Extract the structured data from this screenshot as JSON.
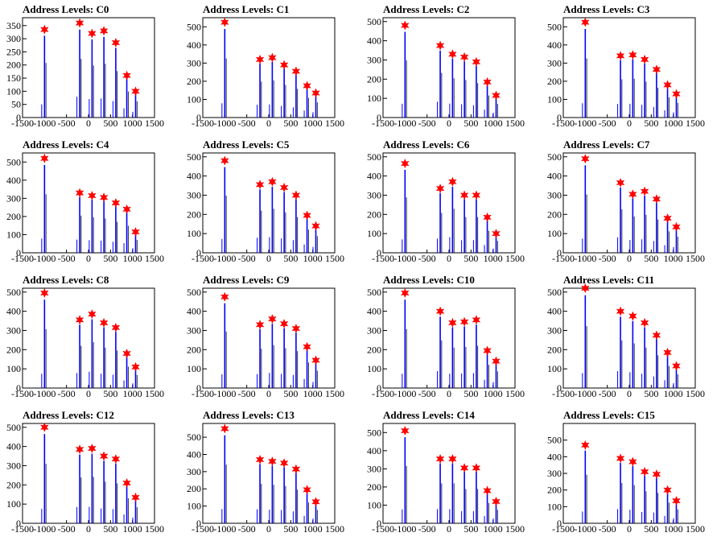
{
  "figure": {
    "layout": "4x4 grid of histograms",
    "colors": {
      "histogram": "#0000ff",
      "fill_line": "#000000",
      "peak_marker": "#ff0000"
    }
  },
  "chart_data": [
    {
      "type": "bar",
      "title": "Address Levels: C0",
      "xlim": [
        -1500,
        1500
      ],
      "ylim": [
        0,
        380
      ],
      "xticks": [
        -1500,
        -1000,
        -500,
        0,
        500,
        1000,
        1500
      ],
      "yticks": [
        0,
        50,
        100,
        150,
        200,
        250,
        300,
        350
      ],
      "peaks": [
        {
          "x": -1000,
          "y": 335
        },
        {
          "x": -200,
          "y": 360
        },
        {
          "x": 80,
          "y": 320
        },
        {
          "x": 350,
          "y": 330
        },
        {
          "x": 620,
          "y": 285
        },
        {
          "x": 870,
          "y": 160
        },
        {
          "x": 1070,
          "y": 100
        }
      ]
    },
    {
      "type": "bar",
      "title": "Address Levels: C1",
      "xlim": [
        -1500,
        1500
      ],
      "ylim": [
        0,
        550
      ],
      "xticks": [
        -1500,
        -1000,
        -500,
        0,
        500,
        1000,
        1500
      ],
      "yticks": [
        0,
        100,
        200,
        300,
        400,
        500
      ],
      "peaks": [
        {
          "x": -1000,
          "y": 525
        },
        {
          "x": -200,
          "y": 320
        },
        {
          "x": 80,
          "y": 330
        },
        {
          "x": 350,
          "y": 290
        },
        {
          "x": 620,
          "y": 255
        },
        {
          "x": 870,
          "y": 175
        },
        {
          "x": 1070,
          "y": 135
        }
      ]
    },
    {
      "type": "bar",
      "title": "Address Levels: C2",
      "xlim": [
        -1500,
        1500
      ],
      "ylim": [
        0,
        520
      ],
      "xticks": [
        -1500,
        -1000,
        -500,
        0,
        500,
        1000,
        1500
      ],
      "yticks": [
        0,
        100,
        200,
        300,
        400,
        500
      ],
      "peaks": [
        {
          "x": -1000,
          "y": 480
        },
        {
          "x": -200,
          "y": 375
        },
        {
          "x": 80,
          "y": 330
        },
        {
          "x": 350,
          "y": 315
        },
        {
          "x": 620,
          "y": 290
        },
        {
          "x": 870,
          "y": 185
        },
        {
          "x": 1070,
          "y": 115
        }
      ]
    },
    {
      "type": "bar",
      "title": "Address Levels: C3",
      "xlim": [
        -1500,
        1500
      ],
      "ylim": [
        0,
        550
      ],
      "xticks": [
        -1500,
        -1000,
        -500,
        0,
        500,
        1000,
        1500
      ],
      "yticks": [
        0,
        100,
        200,
        300,
        400,
        500
      ],
      "peaks": [
        {
          "x": -1000,
          "y": 525
        },
        {
          "x": -200,
          "y": 340
        },
        {
          "x": 80,
          "y": 345
        },
        {
          "x": 350,
          "y": 320
        },
        {
          "x": 620,
          "y": 265
        },
        {
          "x": 870,
          "y": 180
        },
        {
          "x": 1070,
          "y": 130
        }
      ]
    },
    {
      "type": "bar",
      "title": "Address Levels: C4",
      "xlim": [
        -1500,
        1500
      ],
      "ylim": [
        0,
        550
      ],
      "xticks": [
        -1500,
        -1000,
        -500,
        0,
        500,
        1000,
        1500
      ],
      "yticks": [
        0,
        100,
        200,
        300,
        400,
        500
      ],
      "peaks": [
        {
          "x": -1000,
          "y": 520
        },
        {
          "x": -200,
          "y": 330
        },
        {
          "x": 80,
          "y": 315
        },
        {
          "x": 350,
          "y": 305
        },
        {
          "x": 620,
          "y": 275
        },
        {
          "x": 870,
          "y": 240
        },
        {
          "x": 1070,
          "y": 115
        }
      ]
    },
    {
      "type": "bar",
      "title": "Address Levels: C5",
      "xlim": [
        -1500,
        1500
      ],
      "ylim": [
        0,
        520
      ],
      "xticks": [
        -1500,
        -1000,
        -500,
        0,
        500,
        1000,
        1500
      ],
      "yticks": [
        0,
        100,
        200,
        300,
        400,
        500
      ],
      "peaks": [
        {
          "x": -1000,
          "y": 480
        },
        {
          "x": -200,
          "y": 355
        },
        {
          "x": 80,
          "y": 370
        },
        {
          "x": 350,
          "y": 340
        },
        {
          "x": 620,
          "y": 300
        },
        {
          "x": 870,
          "y": 195
        },
        {
          "x": 1070,
          "y": 140
        }
      ]
    },
    {
      "type": "bar",
      "title": "Address Levels: C6",
      "xlim": [
        -1500,
        1500
      ],
      "ylim": [
        0,
        520
      ],
      "xticks": [
        -1500,
        -1000,
        -500,
        0,
        500,
        1000,
        1500
      ],
      "yticks": [
        0,
        100,
        200,
        300,
        400,
        500
      ],
      "peaks": [
        {
          "x": -1000,
          "y": 465
        },
        {
          "x": -200,
          "y": 335
        },
        {
          "x": 80,
          "y": 370
        },
        {
          "x": 350,
          "y": 300
        },
        {
          "x": 620,
          "y": 300
        },
        {
          "x": 870,
          "y": 185
        },
        {
          "x": 1070,
          "y": 100
        }
      ]
    },
    {
      "type": "bar",
      "title": "Address Levels: C7",
      "xlim": [
        -1500,
        1500
      ],
      "ylim": [
        0,
        520
      ],
      "xticks": [
        -1500,
        -1000,
        -500,
        0,
        500,
        1000,
        1500
      ],
      "yticks": [
        0,
        100,
        200,
        300,
        400,
        500
      ],
      "peaks": [
        {
          "x": -1000,
          "y": 490
        },
        {
          "x": -200,
          "y": 365
        },
        {
          "x": 80,
          "y": 305
        },
        {
          "x": 350,
          "y": 320
        },
        {
          "x": 620,
          "y": 280
        },
        {
          "x": 870,
          "y": 180
        },
        {
          "x": 1070,
          "y": 135
        }
      ]
    },
    {
      "type": "bar",
      "title": "Address Levels: C8",
      "xlim": [
        -1500,
        1500
      ],
      "ylim": [
        0,
        520
      ],
      "xticks": [
        -1500,
        -1000,
        -500,
        0,
        500,
        1000,
        1500
      ],
      "yticks": [
        0,
        100,
        200,
        300,
        400,
        500
      ],
      "peaks": [
        {
          "x": -1000,
          "y": 495
        },
        {
          "x": -200,
          "y": 355
        },
        {
          "x": 80,
          "y": 385
        },
        {
          "x": 350,
          "y": 340
        },
        {
          "x": 620,
          "y": 315
        },
        {
          "x": 870,
          "y": 180
        },
        {
          "x": 1070,
          "y": 110
        }
      ]
    },
    {
      "type": "bar",
      "title": "Address Levels: C9",
      "xlim": [
        -1500,
        1500
      ],
      "ylim": [
        0,
        520
      ],
      "xticks": [
        -1500,
        -1000,
        -500,
        0,
        500,
        1000,
        1500
      ],
      "yticks": [
        0,
        100,
        200,
        300,
        400,
        500
      ],
      "peaks": [
        {
          "x": -1000,
          "y": 475
        },
        {
          "x": -200,
          "y": 330
        },
        {
          "x": 80,
          "y": 360
        },
        {
          "x": 350,
          "y": 335
        },
        {
          "x": 620,
          "y": 310
        },
        {
          "x": 870,
          "y": 215
        },
        {
          "x": 1070,
          "y": 145
        }
      ]
    },
    {
      "type": "bar",
      "title": "Address Levels: C10",
      "xlim": [
        -1500,
        1500
      ],
      "ylim": [
        0,
        520
      ],
      "xticks": [
        -1500,
        -1000,
        -500,
        0,
        500,
        1000,
        1500
      ],
      "yticks": [
        0,
        100,
        200,
        300,
        400,
        500
      ],
      "peaks": [
        {
          "x": -1000,
          "y": 495
        },
        {
          "x": -200,
          "y": 400
        },
        {
          "x": 80,
          "y": 340
        },
        {
          "x": 350,
          "y": 345
        },
        {
          "x": 620,
          "y": 355
        },
        {
          "x": 870,
          "y": 195
        },
        {
          "x": 1070,
          "y": 140
        }
      ]
    },
    {
      "type": "bar",
      "title": "Address Levels: C11",
      "xlim": [
        -1500,
        1500
      ],
      "ylim": [
        0,
        520
      ],
      "xticks": [
        -1500,
        -1000,
        -500,
        0,
        500,
        1000,
        1500
      ],
      "yticks": [
        0,
        100,
        200,
        300,
        400,
        500
      ],
      "peaks": [
        {
          "x": -1000,
          "y": 520
        },
        {
          "x": -200,
          "y": 400
        },
        {
          "x": 80,
          "y": 375
        },
        {
          "x": 350,
          "y": 340
        },
        {
          "x": 620,
          "y": 275
        },
        {
          "x": 870,
          "y": 185
        },
        {
          "x": 1070,
          "y": 115
        }
      ]
    },
    {
      "type": "bar",
      "title": "Address Levels: C12",
      "xlim": [
        -1500,
        1500
      ],
      "ylim": [
        0,
        520
      ],
      "xticks": [
        -1500,
        -1000,
        -500,
        0,
        500,
        1000,
        1500
      ],
      "yticks": [
        0,
        100,
        200,
        300,
        400,
        500
      ],
      "peaks": [
        {
          "x": -1000,
          "y": 500
        },
        {
          "x": -200,
          "y": 385
        },
        {
          "x": 80,
          "y": 390
        },
        {
          "x": 350,
          "y": 350
        },
        {
          "x": 620,
          "y": 335
        },
        {
          "x": 870,
          "y": 210
        },
        {
          "x": 1070,
          "y": 135
        }
      ]
    },
    {
      "type": "bar",
      "title": "Address Levels: C13",
      "xlim": [
        -1500,
        1500
      ],
      "ylim": [
        0,
        580
      ],
      "xticks": [
        -1500,
        -1000,
        -500,
        0,
        500,
        1000,
        1500
      ],
      "yticks": [
        0,
        100,
        200,
        300,
        400,
        500
      ],
      "peaks": [
        {
          "x": -1000,
          "y": 550
        },
        {
          "x": -200,
          "y": 370
        },
        {
          "x": 80,
          "y": 360
        },
        {
          "x": 350,
          "y": 350
        },
        {
          "x": 620,
          "y": 315
        },
        {
          "x": 870,
          "y": 195
        },
        {
          "x": 1070,
          "y": 125
        }
      ]
    },
    {
      "type": "bar",
      "title": "Address Levels: C14",
      "xlim": [
        -1500,
        1500
      ],
      "ylim": [
        0,
        550
      ],
      "xticks": [
        -1500,
        -1000,
        -500,
        0,
        500,
        1000,
        1500
      ],
      "yticks": [
        0,
        100,
        200,
        300,
        400,
        500
      ],
      "peaks": [
        {
          "x": -1000,
          "y": 510
        },
        {
          "x": -200,
          "y": 355
        },
        {
          "x": 80,
          "y": 355
        },
        {
          "x": 350,
          "y": 305
        },
        {
          "x": 620,
          "y": 305
        },
        {
          "x": 870,
          "y": 180
        },
        {
          "x": 1070,
          "y": 120
        }
      ]
    },
    {
      "type": "bar",
      "title": "Address Levels: C15",
      "xlim": [
        -1500,
        1500
      ],
      "ylim": [
        0,
        600
      ],
      "xticks": [
        -1500,
        -1000,
        -500,
        0,
        500,
        1000,
        1500
      ],
      "yticks": [
        0,
        100,
        200,
        300,
        400,
        500
      ],
      "peaks": [
        {
          "x": -1000,
          "y": 470
        },
        {
          "x": -200,
          "y": 390
        },
        {
          "x": 80,
          "y": 370
        },
        {
          "x": 350,
          "y": 310
        },
        {
          "x": 620,
          "y": 295
        },
        {
          "x": 870,
          "y": 200
        },
        {
          "x": 1070,
          "y": 135
        }
      ]
    }
  ]
}
